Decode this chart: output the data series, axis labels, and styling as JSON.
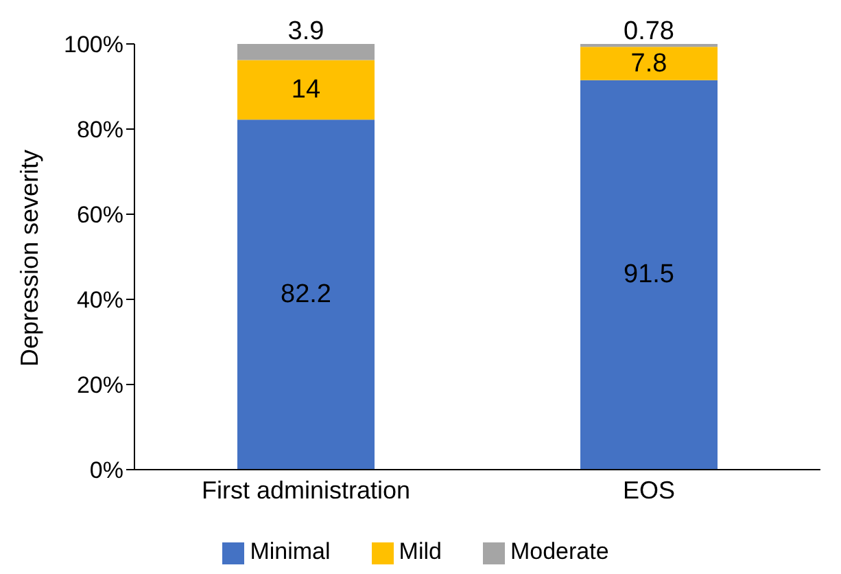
{
  "chart_data": {
    "type": "bar",
    "stacked": true,
    "ylabel": "Depression severity",
    "categories": [
      "First administration",
      "EOS"
    ],
    "series": [
      {
        "name": "Minimal",
        "color": "#4472c4",
        "values": [
          82.2,
          91.5
        ]
      },
      {
        "name": "Mild",
        "color": "#ffc000",
        "values": [
          14,
          7.8
        ]
      },
      {
        "name": "Moderate",
        "color": "#a5a5a5",
        "values": [
          3.9,
          0.78
        ]
      }
    ],
    "ylim": [
      0,
      100
    ],
    "yticks": [
      {
        "value": 0,
        "label": "0%"
      },
      {
        "value": 20,
        "label": "20%"
      },
      {
        "value": 40,
        "label": "40%"
      },
      {
        "value": 60,
        "label": "60%"
      },
      {
        "value": 80,
        "label": "80%"
      },
      {
        "value": 100,
        "label": "100%"
      }
    ],
    "data_labels": true,
    "legend": "bottom",
    "grid": false
  }
}
